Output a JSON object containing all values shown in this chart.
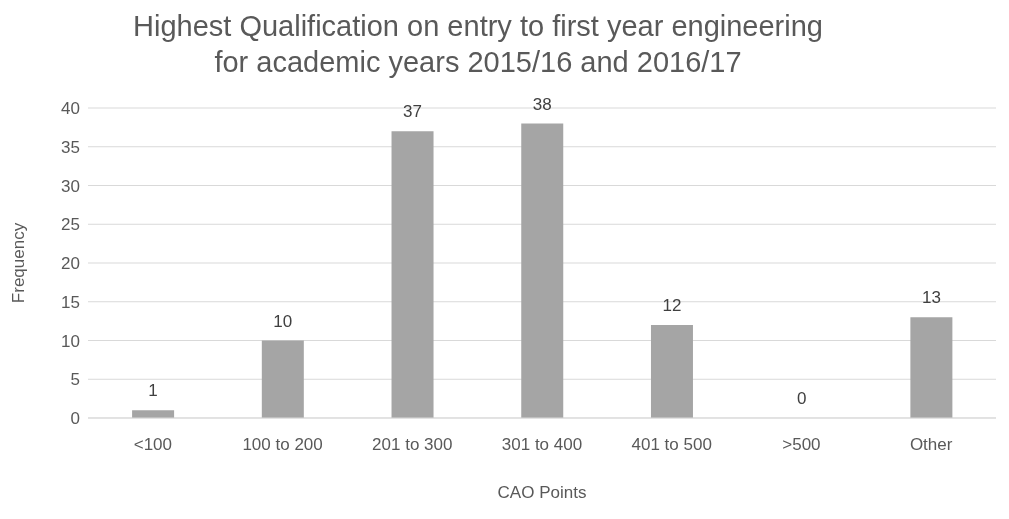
{
  "chart_data": {
    "type": "bar",
    "title": "Highest Qualification on entry to first year engineering for academic years 2015/16 and 2016/17",
    "xlabel": "CAO Points",
    "ylabel": "Frequency",
    "categories": [
      "<100",
      "100 to 200",
      "201 to 300",
      "301 to 400",
      "401 to 500",
      ">500",
      "Other"
    ],
    "values": [
      1,
      10,
      37,
      38,
      12,
      0,
      13
    ],
    "color": "#a5a5a5",
    "ylim": [
      0,
      40
    ],
    "yticks": [
      0,
      5,
      10,
      15,
      20,
      25,
      30,
      35,
      40
    ],
    "grid": "y",
    "data_labels": true
  }
}
